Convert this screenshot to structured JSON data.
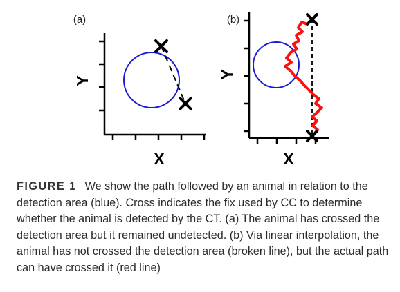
{
  "figure": {
    "panels": [
      {
        "label": "(a)",
        "x_axis_label": "X",
        "y_axis_label": "Y"
      },
      {
        "label": "(b)",
        "x_axis_label": "X",
        "y_axis_label": "Y"
      }
    ],
    "colors": {
      "detection_area": "#1a1ad6",
      "actual_path": "#ff0000",
      "interpolated_path": "#000000",
      "fix_marker": "#000000"
    },
    "icons": [
      "cross-icon"
    ]
  },
  "caption": {
    "label": "FIGURE 1",
    "text": "We show the path followed by an animal in relation to the detection area (blue). Cross indicates the fix used by CC to determine whether the animal is detected by the CT. (a) The animal has crossed the detection area but it remained undetected. (b) Via linear interpolation, the animal has not crossed the detection area (broken line), but the actual path can have crossed it (red line)"
  }
}
